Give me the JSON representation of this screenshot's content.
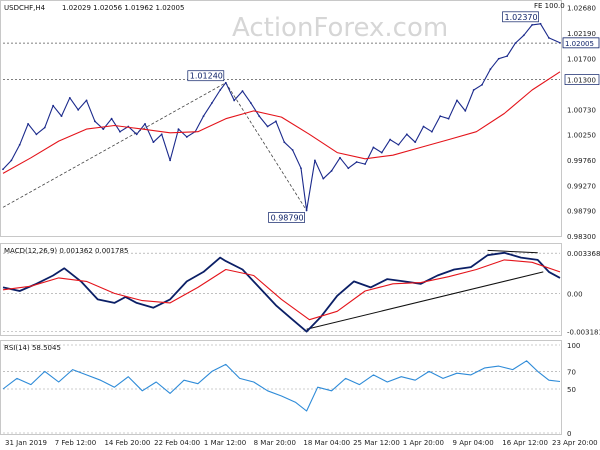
{
  "chart_data": [
    {
      "type": "line",
      "panel": "price",
      "symbol_label": "USDCHF,H4",
      "ohlc_label": "1.02029 1.02056 1.01962 1.02005",
      "corner_label": "FE 100.0",
      "watermark": "ActionForex.com",
      "ylim": [
        0.983,
        1.0275
      ],
      "y_ticks": [
        "1.02680",
        "1.02190",
        "1.01700",
        "1.01300",
        "1.00730",
        "1.00250",
        "0.99760",
        "0.99270",
        "0.98790",
        "0.98300"
      ],
      "y_tick_values": [
        1.0268,
        1.0219,
        1.017,
        1.013,
        1.0073,
        1.0025,
        0.9976,
        0.9927,
        0.9879,
        0.983
      ],
      "highlighted_ticks": [
        "1.01300",
        "1.02005"
      ],
      "last_price": 1.02005,
      "last_price_label": "1.02005",
      "horizontal_levels": [
        1.02,
        1.013
      ],
      "annotations": [
        {
          "label": "1.01240",
          "t": 0.4,
          "value": 1.0124
        },
        {
          "label": "0.98790",
          "t": 0.545,
          "value": 0.9879
        },
        {
          "label": "1.02370",
          "t": 0.965,
          "value": 1.0237
        }
      ],
      "trend_lines": [
        {
          "from": [
            0.0,
            0.9885
          ],
          "to": [
            0.4,
            1.0124
          ]
        },
        {
          "from": [
            0.4,
            1.0124
          ],
          "to": [
            0.545,
            0.9879
          ]
        }
      ],
      "series": [
        {
          "color": "#1b2a8c",
          "t": [
            0.0,
            0.015,
            0.03,
            0.045,
            0.06,
            0.075,
            0.09,
            0.105,
            0.12,
            0.135,
            0.15,
            0.165,
            0.18,
            0.195,
            0.21,
            0.225,
            0.24,
            0.255,
            0.27,
            0.285,
            0.3,
            0.315,
            0.33,
            0.345,
            0.36,
            0.375,
            0.39,
            0.4,
            0.415,
            0.43,
            0.445,
            0.46,
            0.475,
            0.49,
            0.505,
            0.52,
            0.535,
            0.545,
            0.56,
            0.575,
            0.59,
            0.605,
            0.62,
            0.635,
            0.65,
            0.665,
            0.68,
            0.695,
            0.71,
            0.725,
            0.74,
            0.755,
            0.77,
            0.785,
            0.8,
            0.815,
            0.83,
            0.845,
            0.86,
            0.875,
            0.89,
            0.905,
            0.92,
            0.935,
            0.95,
            0.965,
            0.98,
            1.0
          ],
          "values": [
            0.9958,
            0.9975,
            1.0005,
            1.0045,
            1.0025,
            1.0038,
            1.008,
            1.006,
            1.0095,
            1.0072,
            1.009,
            1.005,
            1.0035,
            1.0055,
            1.003,
            1.004,
            1.0025,
            1.0045,
            1.001,
            1.0025,
            0.9975,
            1.0035,
            1.002,
            1.003,
            1.006,
            1.0085,
            1.011,
            1.0124,
            1.009,
            1.0108,
            1.0085,
            1.006,
            1.004,
            1.005,
            1.001,
            0.9995,
            0.996,
            0.9879,
            0.9975,
            0.994,
            0.9955,
            0.998,
            0.996,
            0.9972,
            0.9968,
            1.0,
            0.999,
            1.0015,
            1.0005,
            1.0025,
            1.001,
            1.004,
            1.003,
            1.006,
            1.0055,
            1.009,
            1.007,
            1.011,
            1.012,
            1.015,
            1.017,
            1.0175,
            1.02,
            1.0215,
            1.0235,
            1.0237,
            1.021,
            1.02005
          ]
        },
        {
          "color": "#e4141b",
          "t": [
            0.0,
            0.05,
            0.1,
            0.15,
            0.2,
            0.25,
            0.3,
            0.35,
            0.4,
            0.45,
            0.5,
            0.55,
            0.6,
            0.65,
            0.7,
            0.75,
            0.8,
            0.85,
            0.9,
            0.95,
            1.0
          ],
          "values": [
            0.995,
            0.998,
            1.0012,
            1.0035,
            1.0042,
            1.0035,
            1.0028,
            1.003,
            1.0055,
            1.007,
            1.0058,
            1.0025,
            0.999,
            0.9978,
            0.9985,
            1.0,
            1.0015,
            1.003,
            1.0065,
            1.011,
            1.0145
          ]
        }
      ]
    },
    {
      "type": "line",
      "panel": "macd",
      "label": "MACD(12,26,9) 0.001362 0.001785",
      "ylim": [
        -0.0034,
        0.0038
      ],
      "y_ticks": [
        "0.003368",
        "0.00",
        "-0.003181"
      ],
      "y_tick_values": [
        0.003368,
        0.0,
        -0.003181
      ],
      "trend_lines": [
        {
          "from": [
            0.545,
            -0.003
          ],
          "to": [
            0.97,
            0.0018
          ]
        },
        {
          "from": [
            0.87,
            0.0036
          ],
          "to": [
            0.96,
            0.0034
          ]
        }
      ],
      "series": [
        {
          "color": "#0b1f66",
          "t": [
            0.0,
            0.03,
            0.06,
            0.09,
            0.11,
            0.14,
            0.17,
            0.2,
            0.22,
            0.24,
            0.27,
            0.3,
            0.33,
            0.36,
            0.39,
            0.4,
            0.43,
            0.46,
            0.49,
            0.52,
            0.545,
            0.57,
            0.6,
            0.63,
            0.66,
            0.69,
            0.72,
            0.75,
            0.78,
            0.81,
            0.84,
            0.87,
            0.9,
            0.93,
            0.96,
            0.98,
            1.0
          ],
          "values": [
            0.0005,
            0.0002,
            0.0008,
            0.0015,
            0.0021,
            0.001,
            -0.0005,
            -0.0008,
            -0.0003,
            -0.0008,
            -0.0012,
            -0.0005,
            0.001,
            0.0018,
            0.003,
            0.0027,
            0.002,
            0.0005,
            -0.001,
            -0.0022,
            -0.0032,
            -0.002,
            -0.0002,
            0.001,
            0.0005,
            0.0012,
            0.001,
            0.0008,
            0.0015,
            0.002,
            0.0022,
            0.0032,
            0.0034,
            0.003,
            0.0028,
            0.0018,
            0.0013
          ]
        },
        {
          "color": "#e4141b",
          "t": [
            0.0,
            0.05,
            0.1,
            0.15,
            0.2,
            0.25,
            0.3,
            0.35,
            0.4,
            0.45,
            0.5,
            0.55,
            0.6,
            0.65,
            0.7,
            0.75,
            0.8,
            0.85,
            0.9,
            0.95,
            1.0
          ],
          "values": [
            0.0003,
            0.0006,
            0.0013,
            0.001,
            0.0,
            -0.0006,
            -0.0008,
            0.0005,
            0.002,
            0.0015,
            -0.0005,
            -0.0022,
            -0.0015,
            0.0002,
            0.0008,
            0.0009,
            0.0014,
            0.002,
            0.0028,
            0.0026,
            0.0018
          ]
        }
      ]
    },
    {
      "type": "line",
      "panel": "rsi",
      "label": "RSI(14) 58.5045",
      "ylim": [
        0,
        100
      ],
      "y_ticks": [
        "100",
        "70",
        "50",
        "0"
      ],
      "y_tick_values": [
        100,
        70,
        50,
        0
      ],
      "x_ticks": [
        "31 Jan 2019",
        "7 Feb 12:00",
        "14 Feb 20:00",
        "22 Feb 04:00",
        "1 Mar 12:00",
        "8 Mar 20:00",
        "18 Mar 04:00",
        "25 Mar 12:00",
        "1 Apr 20:00",
        "9 Apr 04:00",
        "16 Apr 12:00",
        "23 Apr 20:00"
      ],
      "series": [
        {
          "color": "#2e8bd8",
          "t": [
            0.0,
            0.025,
            0.05,
            0.075,
            0.1,
            0.125,
            0.15,
            0.175,
            0.2,
            0.225,
            0.25,
            0.275,
            0.3,
            0.325,
            0.35,
            0.375,
            0.4,
            0.425,
            0.45,
            0.475,
            0.5,
            0.525,
            0.545,
            0.565,
            0.59,
            0.615,
            0.64,
            0.665,
            0.69,
            0.715,
            0.74,
            0.765,
            0.79,
            0.815,
            0.84,
            0.865,
            0.89,
            0.915,
            0.94,
            0.96,
            0.98,
            1.0
          ],
          "values": [
            50,
            62,
            55,
            70,
            58,
            72,
            66,
            60,
            52,
            64,
            48,
            58,
            45,
            60,
            56,
            70,
            78,
            62,
            58,
            48,
            42,
            35,
            25,
            52,
            48,
            62,
            55,
            66,
            58,
            64,
            60,
            70,
            62,
            68,
            66,
            74,
            76,
            72,
            82,
            70,
            60,
            58.5
          ]
        }
      ]
    }
  ]
}
